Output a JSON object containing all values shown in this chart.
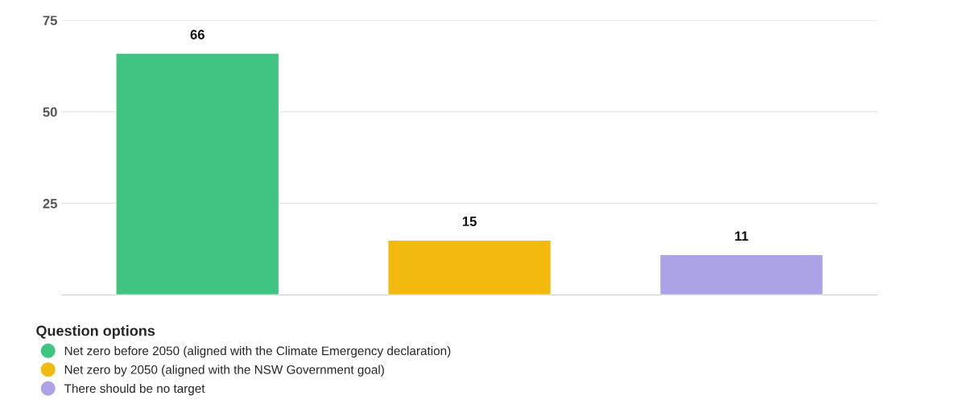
{
  "chart_data": {
    "type": "bar",
    "categories": [
      null,
      null,
      null
    ],
    "series": [
      {
        "name": "Net zero before 2050 (aligned with the Climate Emergency declaration)",
        "color": "#40c482",
        "values": [
          66,
          null,
          null
        ]
      },
      {
        "name": "Net zero by 2050 (aligned with the NSW Government goal)",
        "color": "#f2b90f",
        "values": [
          null,
          15,
          null
        ]
      },
      {
        "name": "There should be no target",
        "color": "#aba3e6",
        "values": [
          null,
          null,
          11
        ]
      }
    ],
    "data_labels": true,
    "ylim": [
      0,
      75
    ],
    "yticks": [
      25,
      50,
      75
    ],
    "grid": "y",
    "legend": "bottom",
    "legend_title": "Question options"
  }
}
